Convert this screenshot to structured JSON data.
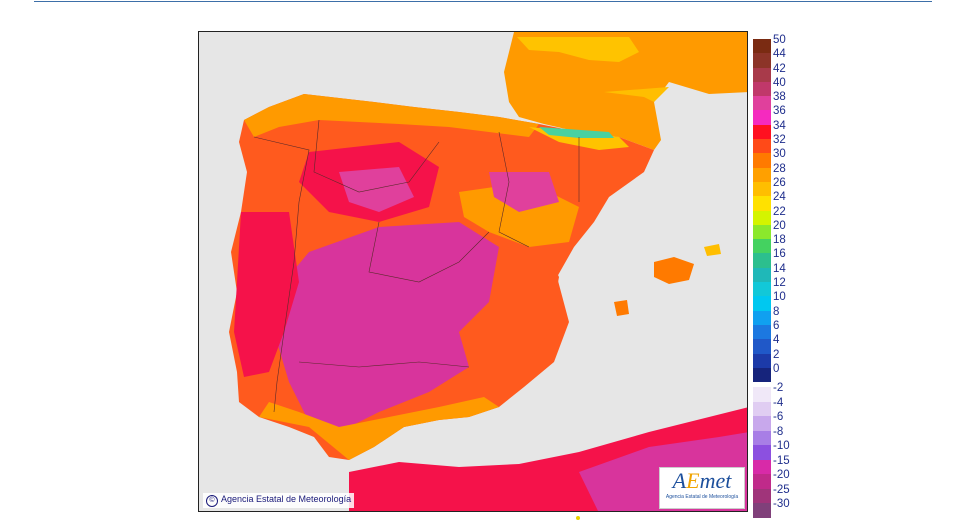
{
  "map": {
    "credit": "Agencia Estatal de Meteorología",
    "credit_symbol": "©",
    "logo_text_a": "A",
    "logo_text_e": "E",
    "logo_text_rest": "met",
    "logo_subtitle": "Agencia Estatal de Meteorología",
    "colors": {
      "sea": "#e6e6e6",
      "hot_plateau": "#d8349c",
      "very_hot": "#f5124a",
      "hot": "#ff5a1e",
      "warm": "#ff9a00",
      "mild": "#ffc300",
      "mountain": "#49d1a0"
    }
  },
  "legend": {
    "positive": [
      {
        "label": "50",
        "color": "#7a2b12"
      },
      {
        "label": "44",
        "color": "#8c3428"
      },
      {
        "label": "42",
        "color": "#a83a4a"
      },
      {
        "label": "40",
        "color": "#c0386a"
      },
      {
        "label": "38",
        "color": "#e0409c"
      },
      {
        "label": "36",
        "color": "#f52abf"
      },
      {
        "label": "34",
        "color": "#ff1020"
      },
      {
        "label": "32",
        "color": "#ff4a18"
      },
      {
        "label": "30",
        "color": "#ff7a00"
      },
      {
        "label": "28",
        "color": "#ffa000"
      },
      {
        "label": "26",
        "color": "#ffbe00"
      },
      {
        "label": "24",
        "color": "#ffe100"
      },
      {
        "label": "22",
        "color": "#d4f400"
      },
      {
        "label": "20",
        "color": "#8be82c"
      },
      {
        "label": "18",
        "color": "#44d260"
      },
      {
        "label": "16",
        "color": "#2cbf8e"
      },
      {
        "label": "14",
        "color": "#1fb8b8"
      },
      {
        "label": "12",
        "color": "#12c8d8"
      },
      {
        "label": "10",
        "color": "#00c8f0"
      },
      {
        "label": "8",
        "color": "#10a0f0"
      },
      {
        "label": "6",
        "color": "#1c78e0"
      },
      {
        "label": "4",
        "color": "#2058c8"
      },
      {
        "label": "2",
        "color": "#1c3aa8"
      },
      {
        "label": "0",
        "color": "#16247c"
      }
    ],
    "negative": [
      {
        "label": "-2",
        "color": "#f0e8f8"
      },
      {
        "label": "-4",
        "color": "#e0cdf2"
      },
      {
        "label": "-6",
        "color": "#c8a8ec"
      },
      {
        "label": "-8",
        "color": "#a87ee6"
      },
      {
        "label": "-10",
        "color": "#8c50e0"
      },
      {
        "label": "-15",
        "color": "#d82aa8"
      },
      {
        "label": "-20",
        "color": "#c02a8a"
      },
      {
        "label": "-25",
        "color": "#a0347a"
      },
      {
        "label": "-30",
        "color": "#80407a"
      }
    ]
  }
}
